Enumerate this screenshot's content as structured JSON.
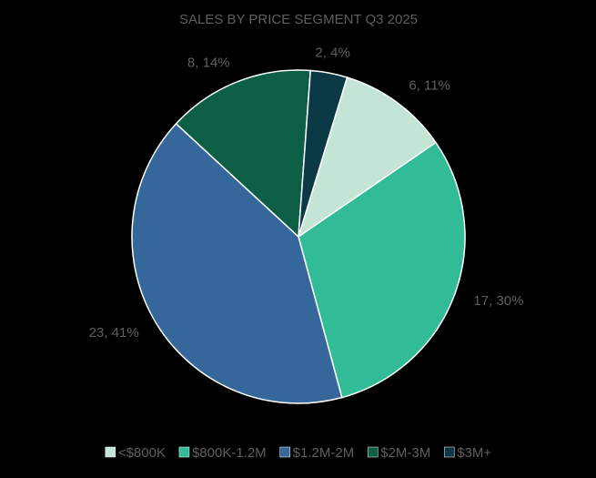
{
  "chart_data": {
    "type": "pie",
    "title": "SALES BY PRICE SEGMENT Q3 2025",
    "categories": [
      "<$800K",
      "$800K-1.2M",
      "$1.2M-2M",
      "$2M-3M",
      "$3M+"
    ],
    "values": [
      6,
      17,
      23,
      8,
      2
    ],
    "value_labels": [
      "6, 11%",
      "17, 30%",
      "23, 41%",
      "8, 14%",
      "2, 4%"
    ],
    "colors": [
      "#c4e5d5",
      "#31bb96",
      "#35679a",
      "#0c5e44",
      "#0b3946"
    ],
    "legend": "bottom"
  }
}
